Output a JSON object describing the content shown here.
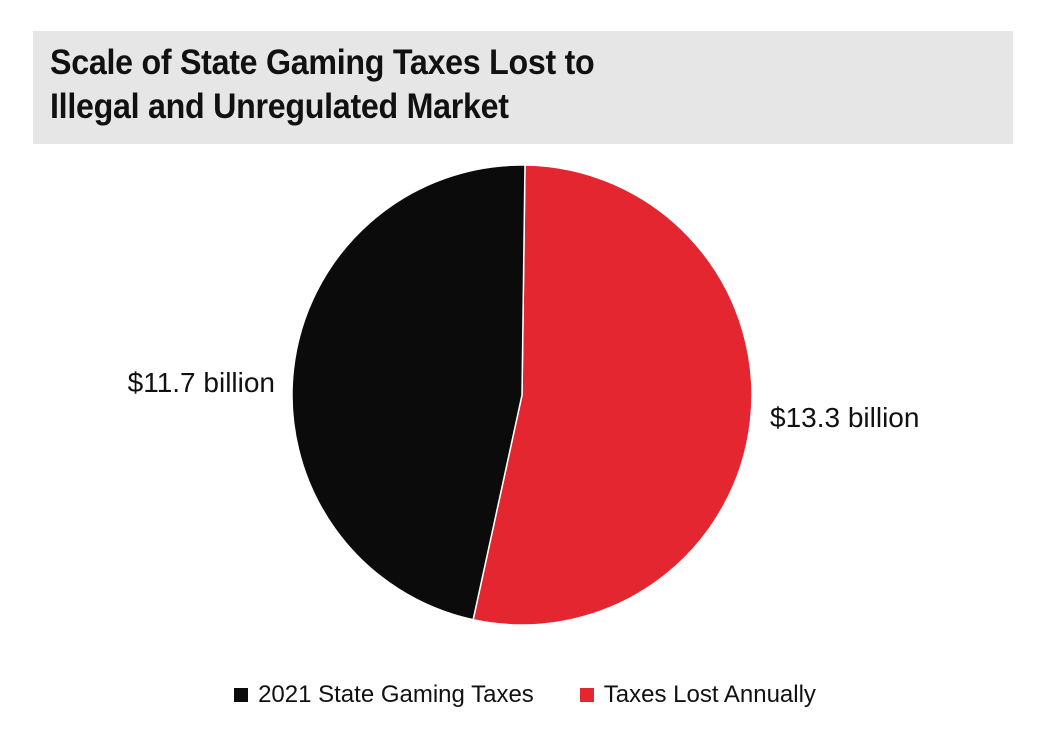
{
  "title_lines": [
    "Scale of State Gaming Taxes Lost to",
    "Illegal and Unregulated Market"
  ],
  "chart_data": {
    "type": "pie",
    "title": "Scale of State Gaming Taxes Lost to Illegal and Unregulated Market",
    "unit": "billion USD",
    "slices": [
      {
        "name": "Taxes Lost Annually",
        "value": 13.3,
        "label": "$13.3 billion",
        "color": "#e32630"
      },
      {
        "name": "2021 State Gaming Taxes",
        "value": 11.7,
        "label": "$11.7 billion",
        "color": "#0b0b0b"
      }
    ],
    "legend_position": "bottom",
    "legend": [
      {
        "label": "2021 State Gaming Taxes",
        "color": "#0b0b0b"
      },
      {
        "label": "Taxes Lost Annually",
        "color": "#e32630"
      }
    ]
  }
}
